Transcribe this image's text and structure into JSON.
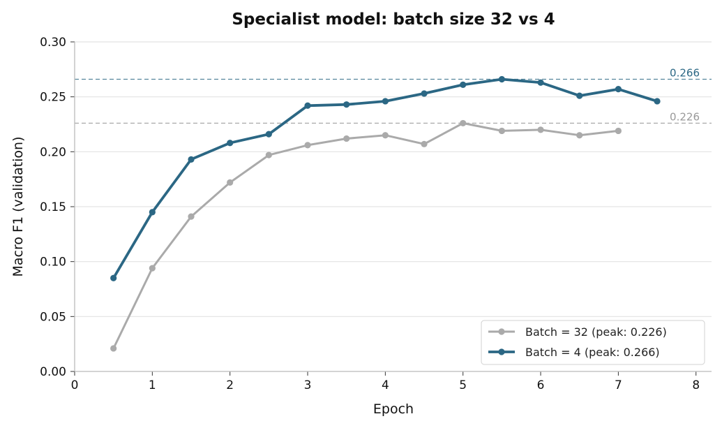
{
  "chart_data": {
    "type": "line",
    "title": "Specialist model: batch size 32 vs 4",
    "xlabel": "Epoch",
    "ylabel": "Macro F1 (validation)",
    "xlim": [
      0,
      8.2
    ],
    "ylim": [
      0,
      0.3
    ],
    "xticks": [
      0,
      1,
      2,
      3,
      4,
      5,
      6,
      7,
      8
    ],
    "xtick_labels": [
      "0",
      "1",
      "2",
      "3",
      "4",
      "5",
      "6",
      "7",
      "8"
    ],
    "yticks": [
      0,
      0.05,
      0.1,
      0.15,
      0.2,
      0.25,
      0.3
    ],
    "ytick_labels": [
      "0.00",
      "0.05",
      "0.10",
      "0.15",
      "0.20",
      "0.25",
      "0.30"
    ],
    "grid": "horizontal",
    "legend_position": "bottom-right",
    "series": [
      {
        "name": "Batch = 32 (peak: 0.226)",
        "color": "#aaaaaa",
        "x": [
          0.5,
          1,
          1.5,
          2,
          2.5,
          3,
          3.5,
          4,
          4.5,
          5,
          5.5,
          6,
          6.5,
          7
        ],
        "values": [
          0.021,
          0.094,
          0.141,
          0.172,
          0.197,
          0.206,
          0.212,
          0.215,
          0.207,
          0.226,
          0.219,
          0.22,
          0.215,
          0.219
        ]
      },
      {
        "name": "Batch = 4 (peak: 0.266)",
        "color": "#2b6784",
        "x": [
          0.5,
          1,
          1.5,
          2,
          2.5,
          3,
          3.5,
          4,
          4.5,
          5,
          5.5,
          6,
          6.5,
          7,
          7.5
        ],
        "values": [
          0.085,
          0.145,
          0.193,
          0.208,
          0.216,
          0.242,
          0.243,
          0.246,
          0.253,
          0.261,
          0.266,
          0.263,
          0.251,
          0.257,
          0.246
        ]
      }
    ],
    "reference_lines": [
      {
        "value": 0.266,
        "label": "0.266",
        "color": "#2b6784"
      },
      {
        "value": 0.226,
        "label": "0.226",
        "color": "#999999"
      }
    ]
  }
}
